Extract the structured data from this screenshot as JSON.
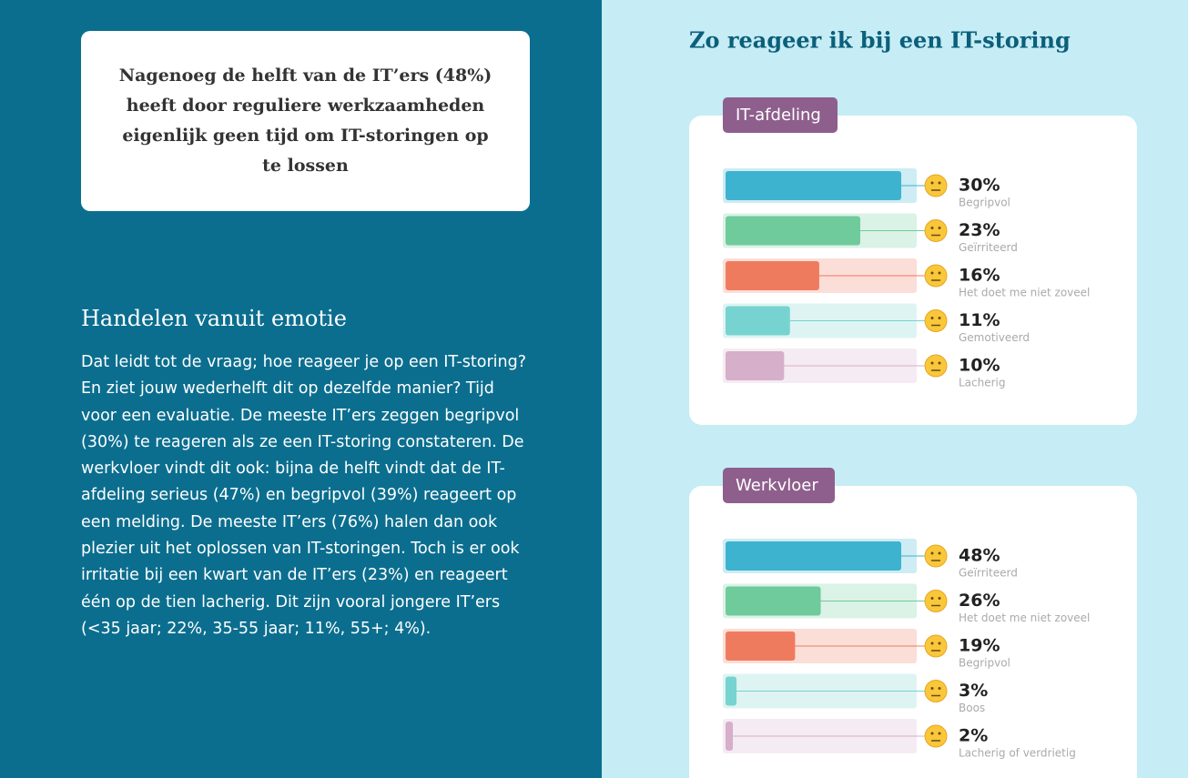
{
  "left": {
    "callout": "Nagenoeg de helft van de IT’ers (48%) heeft door reguliere werkzaamheden eigenlijk geen tijd om IT-storingen op te lossen",
    "heading": "Handelen vanuit emotie",
    "body": "Dat leidt tot de vraag; hoe reageer je op een IT-storing? En ziet jouw wederhelft dit op dezelfde manier? Tijd voor een evaluatie. De meeste IT’ers zeggen begripvol (30%) te reageren als ze een IT-storing constateren. De werkvloer vindt dit ook: bijna de helft vindt dat de IT-afdeling serieus (47%) en begripvol (39%) reageert op een melding. De meeste IT’ers (76%) halen dan ook plezier uit het oplossen van IT-storingen. Toch is er ook irritatie bij een kwart van de IT’ers (23%) en reageert één op de tien lacherig. Dit zijn vooral jongere IT’ers (<35 jaar; 22%, 35-55 jaar; 11%, 55+; 4%)."
  },
  "right_title": "Zo reageer ik bij een IT-storing",
  "chart_data": [
    {
      "type": "bar",
      "orientation": "horizontal",
      "title": "IT-afdeling",
      "categories": [
        "Begripvol",
        "Geïrriteerd",
        "Het doet me niet zoveel",
        "Gemotiveerd",
        "Lacherig"
      ],
      "values": [
        30,
        23,
        16,
        11,
        10
      ],
      "value_labels": [
        "30%",
        "23%",
        "16%",
        "11%",
        "10%"
      ],
      "colors": [
        "#3db3d0",
        "#6fcb9b",
        "#ef7b5f",
        "#76d3d0",
        "#d6afca"
      ],
      "xlim": [
        0,
        30
      ]
    },
    {
      "type": "bar",
      "orientation": "horizontal",
      "title": "Werkvloer",
      "categories": [
        "Geïrriteerd",
        "Het doet me niet zoveel",
        "Begripvol",
        "Boos",
        "Lacherig of verdrietig"
      ],
      "values": [
        48,
        26,
        19,
        3,
        2
      ],
      "value_labels": [
        "48%",
        "26%",
        "19%",
        "3%",
        "2%"
      ],
      "colors": [
        "#3db3d0",
        "#6fcb9b",
        "#ef7b5f",
        "#76d3d0",
        "#d6afca"
      ],
      "xlim": [
        0,
        48
      ]
    }
  ]
}
